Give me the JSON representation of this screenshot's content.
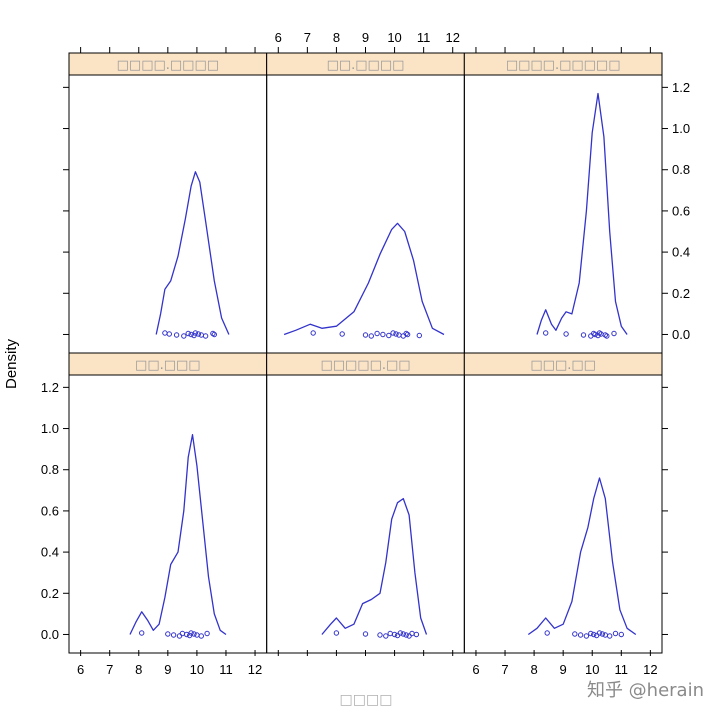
{
  "chart_data": {
    "type": "density",
    "ylabel": "Density",
    "xlabel": "□□□□",
    "xlim": [
      5.6,
      12.4
    ],
    "ylim": [
      -0.09,
      1.26
    ],
    "x_ticks": [
      6,
      7,
      8,
      9,
      10,
      11,
      12
    ],
    "y_ticks": [
      0.0,
      0.2,
      0.4,
      0.6,
      0.8,
      1.0,
      1.2
    ],
    "y_tick_labels": [
      "0.0",
      "0.2",
      "0.4",
      "0.6",
      "0.8",
      "1.0",
      "1.2"
    ],
    "line_color": "#3333cc",
    "strip_fill": "#fbe3c6",
    "panels": [
      {
        "title": "□□□□.□□□□",
        "curve": [
          [
            8.6,
            0.0
          ],
          [
            8.75,
            0.1
          ],
          [
            8.9,
            0.22
          ],
          [
            9.1,
            0.26
          ],
          [
            9.35,
            0.38
          ],
          [
            9.6,
            0.56
          ],
          [
            9.8,
            0.72
          ],
          [
            9.95,
            0.79
          ],
          [
            10.1,
            0.74
          ],
          [
            10.3,
            0.55
          ],
          [
            10.6,
            0.26
          ],
          [
            10.85,
            0.08
          ],
          [
            11.1,
            0.0
          ]
        ],
        "points": [
          [
            8.9,
            0.0
          ],
          [
            9.05,
            0.0
          ],
          [
            9.3,
            0.0
          ],
          [
            9.55,
            0.0
          ],
          [
            9.7,
            0.0
          ],
          [
            9.8,
            0.0
          ],
          [
            9.9,
            0.0
          ],
          [
            9.95,
            0.0
          ],
          [
            10.05,
            0.0
          ],
          [
            10.15,
            0.0
          ],
          [
            10.3,
            0.0
          ],
          [
            10.55,
            0.0
          ],
          [
            10.6,
            0.0
          ]
        ]
      },
      {
        "title": "□□.□□□□",
        "curve": [
          [
            6.2,
            0.0
          ],
          [
            6.6,
            0.02
          ],
          [
            7.1,
            0.05
          ],
          [
            7.5,
            0.03
          ],
          [
            8.0,
            0.04
          ],
          [
            8.6,
            0.11
          ],
          [
            9.1,
            0.25
          ],
          [
            9.5,
            0.39
          ],
          [
            9.9,
            0.51
          ],
          [
            10.1,
            0.54
          ],
          [
            10.35,
            0.5
          ],
          [
            10.65,
            0.36
          ],
          [
            10.95,
            0.16
          ],
          [
            11.3,
            0.03
          ],
          [
            11.7,
            0.0
          ]
        ],
        "points": [
          [
            7.2,
            0.0
          ],
          [
            8.2,
            0.0
          ],
          [
            9.0,
            0.0
          ],
          [
            9.2,
            0.0
          ],
          [
            9.4,
            0.0
          ],
          [
            9.6,
            0.0
          ],
          [
            9.8,
            0.0
          ],
          [
            9.95,
            0.0
          ],
          [
            10.05,
            0.0
          ],
          [
            10.15,
            0.0
          ],
          [
            10.3,
            0.0
          ],
          [
            10.4,
            0.0
          ],
          [
            10.45,
            0.0
          ],
          [
            10.85,
            0.0
          ]
        ]
      },
      {
        "title": "□□□□.□□□□□",
        "curve": [
          [
            8.1,
            0.0
          ],
          [
            8.25,
            0.07
          ],
          [
            8.4,
            0.12
          ],
          [
            8.6,
            0.05
          ],
          [
            8.75,
            0.02
          ],
          [
            8.95,
            0.08
          ],
          [
            9.1,
            0.11
          ],
          [
            9.3,
            0.1
          ],
          [
            9.55,
            0.25
          ],
          [
            9.8,
            0.6
          ],
          [
            10.0,
            0.98
          ],
          [
            10.2,
            1.17
          ],
          [
            10.4,
            0.96
          ],
          [
            10.6,
            0.5
          ],
          [
            10.8,
            0.16
          ],
          [
            11.0,
            0.04
          ],
          [
            11.2,
            0.0
          ]
        ],
        "points": [
          [
            8.4,
            0.0
          ],
          [
            9.1,
            0.0
          ],
          [
            9.7,
            0.0
          ],
          [
            9.95,
            0.0
          ],
          [
            10.05,
            0.0
          ],
          [
            10.1,
            0.0
          ],
          [
            10.2,
            0.0
          ],
          [
            10.25,
            0.0
          ],
          [
            10.3,
            0.0
          ],
          [
            10.45,
            0.0
          ],
          [
            10.5,
            0.0
          ],
          [
            10.75,
            0.0
          ]
        ]
      },
      {
        "title": "□□.□□□",
        "curve": [
          [
            7.7,
            0.0
          ],
          [
            7.9,
            0.06
          ],
          [
            8.1,
            0.11
          ],
          [
            8.3,
            0.07
          ],
          [
            8.5,
            0.02
          ],
          [
            8.7,
            0.05
          ],
          [
            8.9,
            0.18
          ],
          [
            9.1,
            0.34
          ],
          [
            9.35,
            0.4
          ],
          [
            9.55,
            0.6
          ],
          [
            9.7,
            0.86
          ],
          [
            9.85,
            0.97
          ],
          [
            10.0,
            0.82
          ],
          [
            10.2,
            0.55
          ],
          [
            10.4,
            0.28
          ],
          [
            10.6,
            0.1
          ],
          [
            10.8,
            0.02
          ],
          [
            11.0,
            0.0
          ]
        ],
        "points": [
          [
            8.1,
            0.0
          ],
          [
            9.0,
            0.0
          ],
          [
            9.2,
            0.0
          ],
          [
            9.4,
            0.0
          ],
          [
            9.5,
            0.0
          ],
          [
            9.65,
            0.0
          ],
          [
            9.75,
            0.0
          ],
          [
            9.8,
            0.0
          ],
          [
            9.9,
            0.0
          ],
          [
            10.0,
            0.0
          ],
          [
            10.15,
            0.0
          ],
          [
            10.35,
            0.0
          ]
        ]
      },
      {
        "title": "□□□□□.□□",
        "curve": [
          [
            7.5,
            0.0
          ],
          [
            7.8,
            0.05
          ],
          [
            8.0,
            0.08
          ],
          [
            8.3,
            0.03
          ],
          [
            8.6,
            0.05
          ],
          [
            8.9,
            0.15
          ],
          [
            9.2,
            0.17
          ],
          [
            9.5,
            0.2
          ],
          [
            9.7,
            0.35
          ],
          [
            9.9,
            0.56
          ],
          [
            10.1,
            0.64
          ],
          [
            10.3,
            0.66
          ],
          [
            10.5,
            0.58
          ],
          [
            10.7,
            0.3
          ],
          [
            10.9,
            0.08
          ],
          [
            11.1,
            0.0
          ]
        ],
        "points": [
          [
            8.0,
            0.0
          ],
          [
            9.0,
            0.0
          ],
          [
            9.5,
            0.0
          ],
          [
            9.7,
            0.0
          ],
          [
            9.85,
            0.0
          ],
          [
            10.0,
            0.0
          ],
          [
            10.1,
            0.0
          ],
          [
            10.2,
            0.0
          ],
          [
            10.3,
            0.0
          ],
          [
            10.4,
            0.0
          ],
          [
            10.5,
            0.0
          ],
          [
            10.6,
            0.0
          ],
          [
            10.75,
            0.0
          ]
        ]
      },
      {
        "title": "□□□.□□",
        "curve": [
          [
            7.8,
            0.0
          ],
          [
            8.1,
            0.03
          ],
          [
            8.4,
            0.08
          ],
          [
            8.7,
            0.03
          ],
          [
            9.0,
            0.05
          ],
          [
            9.3,
            0.16
          ],
          [
            9.6,
            0.4
          ],
          [
            9.85,
            0.52
          ],
          [
            10.05,
            0.66
          ],
          [
            10.25,
            0.76
          ],
          [
            10.45,
            0.66
          ],
          [
            10.7,
            0.35
          ],
          [
            10.95,
            0.12
          ],
          [
            11.2,
            0.03
          ],
          [
            11.5,
            0.0
          ]
        ],
        "points": [
          [
            8.45,
            0.0
          ],
          [
            9.4,
            0.0
          ],
          [
            9.6,
            0.0
          ],
          [
            9.8,
            0.0
          ],
          [
            9.95,
            0.0
          ],
          [
            10.05,
            0.0
          ],
          [
            10.15,
            0.0
          ],
          [
            10.25,
            0.0
          ],
          [
            10.35,
            0.0
          ],
          [
            10.45,
            0.0
          ],
          [
            10.6,
            0.0
          ],
          [
            10.8,
            0.0
          ],
          [
            11.0,
            0.0
          ]
        ]
      }
    ]
  },
  "watermark": "知乎 @herain"
}
